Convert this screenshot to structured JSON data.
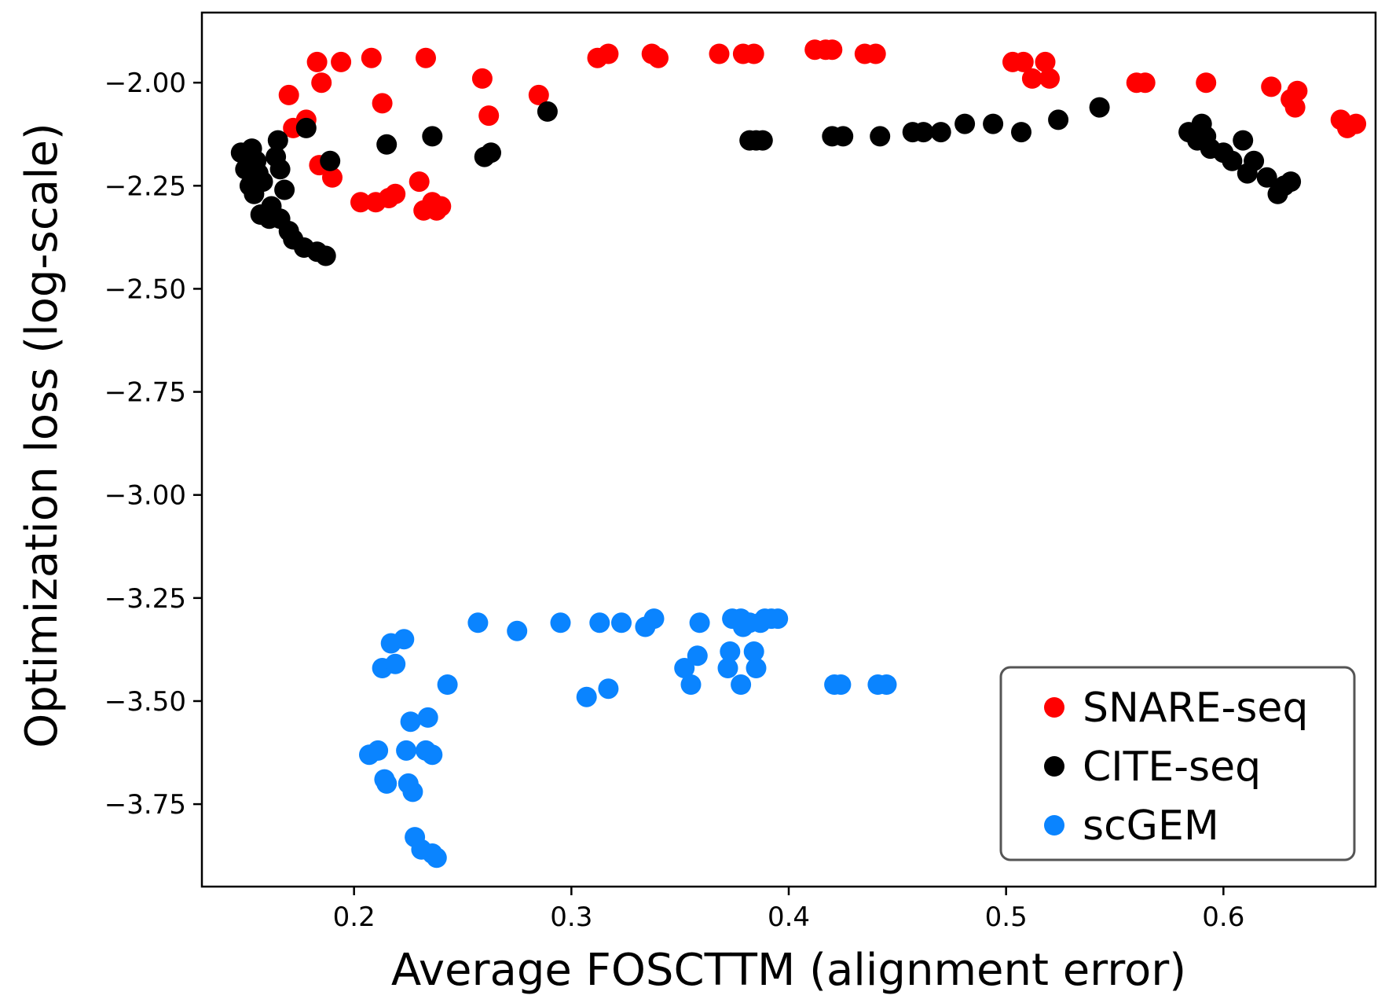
{
  "chart_data": {
    "type": "scatter",
    "title": "",
    "xlabel": "Average FOSCTTM (alignment error)",
    "ylabel": "Optimization loss (log-scale)",
    "xlim": [
      0.13,
      0.67
    ],
    "ylim": [
      -3.95,
      -1.83
    ],
    "xticks": [
      0.2,
      0.3,
      0.4,
      0.5,
      0.6
    ],
    "xtick_labels": [
      "0.2",
      "0.3",
      "0.4",
      "0.5",
      "0.6"
    ],
    "yticks": [
      -2.0,
      -2.25,
      -2.5,
      -2.75,
      -3.0,
      -3.25,
      -3.5,
      -3.75
    ],
    "ytick_labels": [
      "−2.00",
      "−2.25",
      "−2.50",
      "−2.75",
      "−3.00",
      "−3.25",
      "−3.50",
      "−3.75"
    ],
    "grid": false,
    "legend_position": "lower-right",
    "series": [
      {
        "name": "SNARE-seq",
        "color": "#ff0000",
        "points": [
          [
            0.17,
            -2.03
          ],
          [
            0.172,
            -2.11
          ],
          [
            0.178,
            -2.09
          ],
          [
            0.183,
            -1.95
          ],
          [
            0.185,
            -2.0
          ],
          [
            0.184,
            -2.2
          ],
          [
            0.19,
            -2.23
          ],
          [
            0.194,
            -1.95
          ],
          [
            0.208,
            -1.94
          ],
          [
            0.213,
            -2.05
          ],
          [
            0.203,
            -2.29
          ],
          [
            0.21,
            -2.29
          ],
          [
            0.216,
            -2.28
          ],
          [
            0.219,
            -2.27
          ],
          [
            0.23,
            -2.24
          ],
          [
            0.232,
            -2.31
          ],
          [
            0.236,
            -2.29
          ],
          [
            0.24,
            -2.3
          ],
          [
            0.238,
            -2.31
          ],
          [
            0.233,
            -1.94
          ],
          [
            0.259,
            -1.99
          ],
          [
            0.262,
            -2.08
          ],
          [
            0.285,
            -2.03
          ],
          [
            0.312,
            -1.94
          ],
          [
            0.317,
            -1.93
          ],
          [
            0.337,
            -1.93
          ],
          [
            0.34,
            -1.94
          ],
          [
            0.368,
            -1.93
          ],
          [
            0.379,
            -1.93
          ],
          [
            0.384,
            -1.93
          ],
          [
            0.412,
            -1.92
          ],
          [
            0.417,
            -1.92
          ],
          [
            0.42,
            -1.92
          ],
          [
            0.435,
            -1.93
          ],
          [
            0.44,
            -1.93
          ],
          [
            0.503,
            -1.95
          ],
          [
            0.508,
            -1.95
          ],
          [
            0.512,
            -1.99
          ],
          [
            0.518,
            -1.95
          ],
          [
            0.52,
            -1.99
          ],
          [
            0.56,
            -2.0
          ],
          [
            0.564,
            -2.0
          ],
          [
            0.592,
            -2.0
          ],
          [
            0.622,
            -2.01
          ],
          [
            0.631,
            -2.04
          ],
          [
            0.634,
            -2.02
          ],
          [
            0.633,
            -2.06
          ],
          [
            0.654,
            -2.09
          ],
          [
            0.657,
            -2.11
          ],
          [
            0.661,
            -2.1
          ]
        ]
      },
      {
        "name": "CITE-seq",
        "color": "#000000",
        "points": [
          [
            0.148,
            -2.17
          ],
          [
            0.15,
            -2.21
          ],
          [
            0.152,
            -2.25
          ],
          [
            0.153,
            -2.16
          ],
          [
            0.154,
            -2.27
          ],
          [
            0.155,
            -2.19
          ],
          [
            0.156,
            -2.22
          ],
          [
            0.158,
            -2.24
          ],
          [
            0.157,
            -2.32
          ],
          [
            0.161,
            -2.33
          ],
          [
            0.162,
            -2.3
          ],
          [
            0.164,
            -2.18
          ],
          [
            0.165,
            -2.14
          ],
          [
            0.166,
            -2.21
          ],
          [
            0.168,
            -2.26
          ],
          [
            0.166,
            -2.33
          ],
          [
            0.17,
            -2.36
          ],
          [
            0.172,
            -2.38
          ],
          [
            0.177,
            -2.4
          ],
          [
            0.178,
            -2.11
          ],
          [
            0.183,
            -2.41
          ],
          [
            0.187,
            -2.42
          ],
          [
            0.189,
            -2.19
          ],
          [
            0.215,
            -2.15
          ],
          [
            0.236,
            -2.13
          ],
          [
            0.26,
            -2.18
          ],
          [
            0.263,
            -2.17
          ],
          [
            0.289,
            -2.07
          ],
          [
            0.382,
            -2.14
          ],
          [
            0.385,
            -2.14
          ],
          [
            0.388,
            -2.14
          ],
          [
            0.42,
            -2.13
          ],
          [
            0.425,
            -2.13
          ],
          [
            0.442,
            -2.13
          ],
          [
            0.457,
            -2.12
          ],
          [
            0.462,
            -2.12
          ],
          [
            0.47,
            -2.12
          ],
          [
            0.481,
            -2.1
          ],
          [
            0.494,
            -2.1
          ],
          [
            0.507,
            -2.12
          ],
          [
            0.524,
            -2.09
          ],
          [
            0.543,
            -2.06
          ],
          [
            0.584,
            -2.12
          ],
          [
            0.588,
            -2.14
          ],
          [
            0.59,
            -2.1
          ],
          [
            0.592,
            -2.13
          ],
          [
            0.594,
            -2.16
          ],
          [
            0.6,
            -2.17
          ],
          [
            0.604,
            -2.19
          ],
          [
            0.609,
            -2.14
          ],
          [
            0.611,
            -2.22
          ],
          [
            0.614,
            -2.19
          ],
          [
            0.62,
            -2.23
          ],
          [
            0.625,
            -2.27
          ],
          [
            0.628,
            -2.25
          ],
          [
            0.631,
            -2.24
          ]
        ]
      },
      {
        "name": "scGEM",
        "color": "#0a84ff",
        "points": [
          [
            0.207,
            -3.63
          ],
          [
            0.211,
            -3.62
          ],
          [
            0.213,
            -3.42
          ],
          [
            0.214,
            -3.69
          ],
          [
            0.215,
            -3.7
          ],
          [
            0.217,
            -3.36
          ],
          [
            0.219,
            -3.41
          ],
          [
            0.223,
            -3.35
          ],
          [
            0.224,
            -3.62
          ],
          [
            0.225,
            -3.7
          ],
          [
            0.226,
            -3.55
          ],
          [
            0.227,
            -3.72
          ],
          [
            0.228,
            -3.83
          ],
          [
            0.231,
            -3.86
          ],
          [
            0.233,
            -3.62
          ],
          [
            0.234,
            -3.54
          ],
          [
            0.236,
            -3.63
          ],
          [
            0.236,
            -3.87
          ],
          [
            0.238,
            -3.88
          ],
          [
            0.243,
            -3.46
          ],
          [
            0.257,
            -3.31
          ],
          [
            0.275,
            -3.33
          ],
          [
            0.295,
            -3.31
          ],
          [
            0.307,
            -3.49
          ],
          [
            0.313,
            -3.31
          ],
          [
            0.317,
            -3.47
          ],
          [
            0.323,
            -3.31
          ],
          [
            0.334,
            -3.32
          ],
          [
            0.338,
            -3.3
          ],
          [
            0.352,
            -3.42
          ],
          [
            0.355,
            -3.46
          ],
          [
            0.358,
            -3.39
          ],
          [
            0.359,
            -3.31
          ],
          [
            0.372,
            -3.42
          ],
          [
            0.373,
            -3.38
          ],
          [
            0.374,
            -3.3
          ],
          [
            0.378,
            -3.3
          ],
          [
            0.379,
            -3.32
          ],
          [
            0.382,
            -3.31
          ],
          [
            0.384,
            -3.38
          ],
          [
            0.385,
            -3.42
          ],
          [
            0.387,
            -3.31
          ],
          [
            0.389,
            -3.3
          ],
          [
            0.392,
            -3.3
          ],
          [
            0.395,
            -3.3
          ],
          [
            0.378,
            -3.46
          ],
          [
            0.421,
            -3.46
          ],
          [
            0.424,
            -3.46
          ],
          [
            0.441,
            -3.46
          ],
          [
            0.445,
            -3.46
          ]
        ]
      }
    ]
  }
}
